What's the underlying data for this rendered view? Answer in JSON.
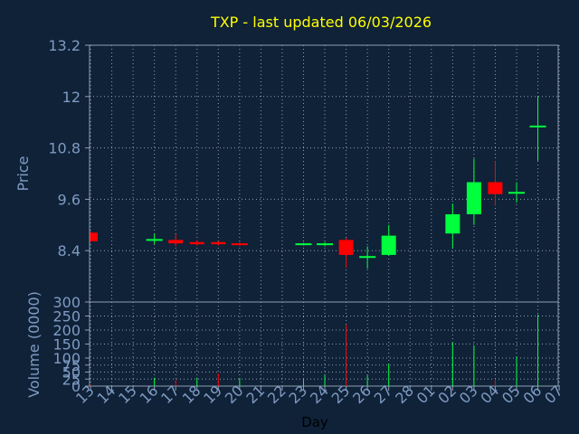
{
  "chart_data": {
    "type": "candlestick",
    "title": "TXP - last updated 06/03/2026",
    "xlabel": "Day",
    "price_panel": {
      "ylabel": "Price",
      "ylim": [
        7.2,
        13.2
      ],
      "yticks": [
        8.4,
        9.6,
        10.8,
        12,
        13.2
      ],
      "ytick_labels": [
        "8.4",
        "9.6",
        "10.8",
        "12",
        "13.2"
      ],
      "grid": true
    },
    "volume_panel": {
      "ylabel": "Volume (0000)",
      "ylim": [
        0,
        300
      ],
      "yticks": [
        0,
        25,
        50,
        75,
        100,
        150,
        200,
        250,
        300
      ],
      "ytick_labels": [
        "0",
        "25",
        "50",
        "75",
        "100",
        "150",
        "200",
        "250",
        "300"
      ],
      "grid": true
    },
    "days": [
      "13",
      "14",
      "15",
      "16",
      "17",
      "18",
      "19",
      "20",
      "21",
      "22",
      "23",
      "24",
      "25",
      "26",
      "27",
      "28",
      "01",
      "02",
      "03",
      "04",
      "05",
      "06",
      "07"
    ],
    "candles": [
      {
        "day": "13",
        "open": 8.82,
        "close": 8.62,
        "high": 8.85,
        "low": 8.6
      },
      {
        "day": "16",
        "open": 8.65,
        "close": 8.65,
        "high": 8.8,
        "low": 8.55
      },
      {
        "day": "17",
        "open": 8.65,
        "close": 8.57,
        "high": 8.78,
        "low": 8.5
      },
      {
        "day": "18",
        "open": 8.6,
        "close": 8.55,
        "high": 8.65,
        "low": 8.52
      },
      {
        "day": "19",
        "open": 8.6,
        "close": 8.55,
        "high": 8.62,
        "low": 8.52
      },
      {
        "day": "20",
        "open": 8.55,
        "close": 8.52,
        "high": 8.6,
        "low": 8.5
      },
      {
        "day": "23",
        "open": 8.55,
        "close": 8.55,
        "high": 8.58,
        "low": 8.52
      },
      {
        "day": "24",
        "open": 8.55,
        "close": 8.55,
        "high": 8.6,
        "low": 8.5
      },
      {
        "day": "25",
        "open": 8.65,
        "close": 8.3,
        "high": 8.7,
        "low": 8.0
      },
      {
        "day": "26",
        "open": 8.25,
        "close": 8.25,
        "high": 8.5,
        "low": 7.98
      },
      {
        "day": "27",
        "open": 8.3,
        "close": 8.75,
        "high": 9.0,
        "low": 8.28
      },
      {
        "day": "02",
        "open": 8.8,
        "close": 9.25,
        "high": 9.5,
        "low": 8.45
      },
      {
        "day": "03",
        "open": 9.25,
        "close": 10.0,
        "high": 10.55,
        "low": 9.0
      },
      {
        "day": "04",
        "open": 10.0,
        "close": 9.72,
        "high": 10.5,
        "low": 9.45
      },
      {
        "day": "05",
        "open": 9.75,
        "close": 9.75,
        "high": 10.0,
        "low": 9.52
      },
      {
        "day": "06",
        "open": 11.3,
        "close": 11.3,
        "high": 12.0,
        "low": 10.5
      }
    ],
    "volume": [
      {
        "day": "13",
        "value": 5,
        "up": false
      },
      {
        "day": "16",
        "value": 30,
        "up": true
      },
      {
        "day": "17",
        "value": 22,
        "up": false
      },
      {
        "day": "18",
        "value": 30,
        "up": true
      },
      {
        "day": "19",
        "value": 45,
        "up": false
      },
      {
        "day": "20",
        "value": 28,
        "up": true
      },
      {
        "day": "23",
        "value": 25,
        "up": true
      },
      {
        "day": "24",
        "value": 40,
        "up": true
      },
      {
        "day": "25",
        "value": 220,
        "up": false
      },
      {
        "day": "26",
        "value": 38,
        "up": true
      },
      {
        "day": "27",
        "value": 80,
        "up": true
      },
      {
        "day": "02",
        "value": 155,
        "up": true
      },
      {
        "day": "03",
        "value": 145,
        "up": true
      },
      {
        "day": "04",
        "value": 25,
        "up": false
      },
      {
        "day": "05",
        "value": 105,
        "up": true
      },
      {
        "day": "06",
        "value": 255,
        "up": true
      }
    ],
    "colors": {
      "background": "#0f2238",
      "plot_background": "#0f2238",
      "grid": "#8e9db0",
      "axis_text": "#7f9bc2",
      "title": "#ffff00",
      "up": "#00ff3c",
      "down": "#ff0000"
    }
  }
}
